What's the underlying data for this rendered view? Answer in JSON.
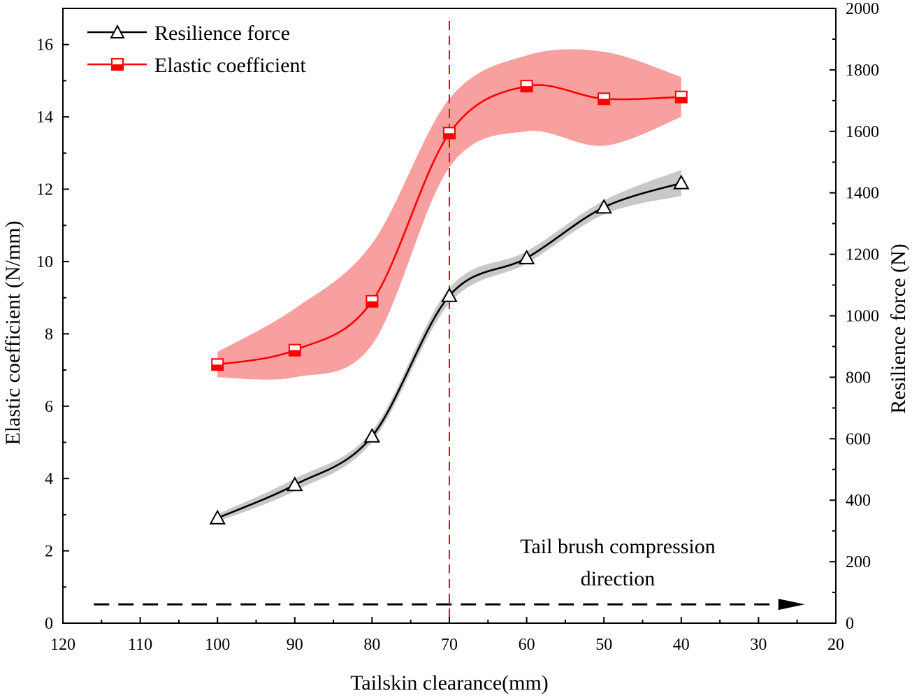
{
  "chart_data": {
    "type": "line",
    "title": "",
    "xlabel": "Tailskin clearance(mm)",
    "ylabel_left": "Elastic coefficient (N/mm)",
    "ylabel_right": "Resilience force (N)",
    "x_reversed": true,
    "xlim": [
      120,
      20
    ],
    "ylim_left": [
      0,
      17
    ],
    "ylim_right": [
      0,
      2000
    ],
    "x_ticks": [
      120,
      110,
      100,
      90,
      80,
      70,
      60,
      50,
      40,
      30,
      20
    ],
    "y_left_ticks": [
      0,
      2,
      4,
      6,
      8,
      10,
      12,
      14,
      16
    ],
    "y_right_ticks": [
      0,
      200,
      400,
      600,
      800,
      1000,
      1200,
      1400,
      1600,
      1800,
      2000
    ],
    "grid": false,
    "legend_position": "top-left",
    "x": [
      100,
      90,
      80,
      70,
      60,
      50,
      40
    ],
    "series": [
      {
        "name": "Resilience force",
        "axis": "right",
        "color": "#000000",
        "band_color": "#c8c8c8",
        "marker": "triangle",
        "values": [
          342,
          450,
          608,
          1065,
          1188,
          1353,
          1432
        ],
        "band_lower": [
          330,
          430,
          590,
          1040,
          1170,
          1330,
          1390
        ],
        "band_upper": [
          355,
          470,
          625,
          1090,
          1210,
          1375,
          1475
        ]
      },
      {
        "name": "Elastic coefficient",
        "axis": "left",
        "color": "#ff0000",
        "band_color": "#f8a0a0",
        "marker": "square",
        "values": [
          7.15,
          7.55,
          8.9,
          13.55,
          14.85,
          14.5,
          14.55
        ],
        "band_lower": [
          6.8,
          6.8,
          7.7,
          12.6,
          13.6,
          13.2,
          14.0
        ],
        "band_upper": [
          7.5,
          8.7,
          10.5,
          14.5,
          15.7,
          15.8,
          15.1
        ]
      }
    ],
    "annotations": {
      "vline_x": 70,
      "vline_color": "#ff0000",
      "direction_text_line1": "Tail brush compression",
      "direction_text_line2": "direction",
      "arrow_from_x": 116,
      "arrow_to_x": 24,
      "arrow_y_left": 0.52
    }
  }
}
